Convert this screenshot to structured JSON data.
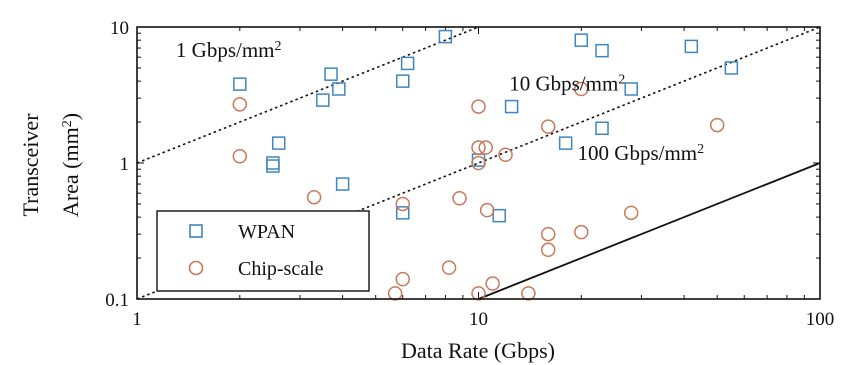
{
  "chart_data": {
    "type": "scatter",
    "xlabel": "Data Rate (Gbps)",
    "ylabel_line1": "Transceiver",
    "ylabel_line2_prefix": "Area (mm",
    "ylabel_line2_sup": "2",
    "ylabel_line2_suffix": ")",
    "xscale": "log",
    "yscale": "log",
    "xlim": [
      1,
      100
    ],
    "ylim": [
      0.1,
      10
    ],
    "x_ticks": [
      {
        "value": 1,
        "label": "1"
      },
      {
        "value": 10,
        "label": "10"
      },
      {
        "value": 100,
        "label": "100"
      }
    ],
    "y_ticks": [
      {
        "value": 0.1,
        "label": "0.1"
      },
      {
        "value": 1,
        "label": "1"
      },
      {
        "value": 10,
        "label": "10"
      }
    ],
    "grid": false,
    "legend_position": "bottom-left",
    "series": [
      {
        "name": "WPAN",
        "marker": "square",
        "color": "#3f86c0",
        "points": [
          [
            2,
            3.8
          ],
          [
            2.5,
            1.0
          ],
          [
            2.5,
            0.95
          ],
          [
            2.6,
            1.4
          ],
          [
            3.5,
            2.9
          ],
          [
            3.7,
            4.5
          ],
          [
            3.9,
            3.5
          ],
          [
            4.0,
            0.7
          ],
          [
            6.0,
            4.0
          ],
          [
            6.2,
            5.4
          ],
          [
            6.0,
            0.43
          ],
          [
            8.0,
            8.5
          ],
          [
            10.0,
            1.05
          ],
          [
            11.5,
            0.41
          ],
          [
            12.5,
            2.6
          ],
          [
            18.0,
            1.4
          ],
          [
            20.0,
            8.0
          ],
          [
            23.0,
            6.7
          ],
          [
            23.0,
            1.8
          ],
          [
            28.0,
            3.5
          ],
          [
            42.0,
            7.2
          ],
          [
            55.0,
            5.0
          ]
        ]
      },
      {
        "name": "Chip-scale",
        "marker": "circle",
        "color": "#c8795a",
        "points": [
          [
            2,
            2.7
          ],
          [
            2,
            1.12
          ],
          [
            3.3,
            0.56
          ],
          [
            5.7,
            0.11
          ],
          [
            6.0,
            0.5
          ],
          [
            6.0,
            0.14
          ],
          [
            8.2,
            0.17
          ],
          [
            8.8,
            0.55
          ],
          [
            10.0,
            2.6
          ],
          [
            10.0,
            1.3
          ],
          [
            10.0,
            1.0
          ],
          [
            10.0,
            0.11
          ],
          [
            10.5,
            1.3
          ],
          [
            10.6,
            0.45
          ],
          [
            11.0,
            0.13
          ],
          [
            12.0,
            1.15
          ],
          [
            14.0,
            0.11
          ],
          [
            16.0,
            1.85
          ],
          [
            16.0,
            0.3
          ],
          [
            16.0,
            0.23
          ],
          [
            20.0,
            3.5
          ],
          [
            20.0,
            0.31
          ],
          [
            28.0,
            0.43
          ],
          [
            50.0,
            1.9
          ]
        ]
      }
    ],
    "reference_lines": [
      {
        "label_main": "1 Gbps/mm",
        "label_sup": "2",
        "density": 1,
        "style": "dotted",
        "label_x": 1.3,
        "label_y": 6.0
      },
      {
        "label_main": "10 Gbps/mm",
        "label_sup": "2",
        "density": 10,
        "style": "dotted",
        "label_x": 12.3,
        "label_y": 3.4
      },
      {
        "label_main": "100 Gbps/mm",
        "label_sup": "2",
        "density": 100,
        "style": "solid",
        "label_x": 19.5,
        "label_y": 1.05
      }
    ]
  }
}
